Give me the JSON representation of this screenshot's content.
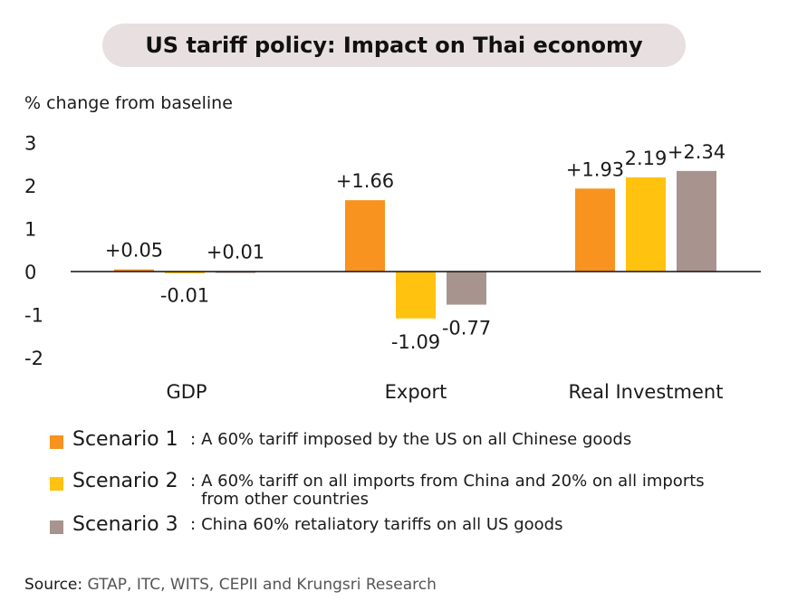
{
  "title": "US tariff policy: Impact on Thai economy",
  "unit_label": "% change from baseline",
  "chart_data": {
    "type": "bar",
    "categories": [
      "GDP",
      "Export",
      "Real Investment"
    ],
    "series": [
      {
        "name": "Scenario 1",
        "color": "#f7931e",
        "values": [
          0.05,
          1.66,
          1.93
        ],
        "labels": [
          "+0.05",
          "+1.66",
          "+1.93"
        ]
      },
      {
        "name": "Scenario 2",
        "color": "#ffc20e",
        "values": [
          -0.01,
          -1.09,
          2.19
        ],
        "labels": [
          "-0.01",
          "-1.09",
          "2.19"
        ]
      },
      {
        "name": "Scenario 3",
        "color": "#a8948f",
        "values": [
          0.01,
          -0.77,
          2.34
        ],
        "labels": [
          "+0.01",
          "-0.77",
          "+2.34"
        ]
      }
    ],
    "yticks": [
      "3",
      "2",
      "1",
      "0",
      "-1",
      "-2"
    ],
    "ylim": [
      -2,
      3
    ],
    "ylabel": "% change from baseline",
    "grid": false,
    "legend_position": "bottom"
  },
  "legend": [
    {
      "name": "Scenario 1",
      "desc_lines": [
        "A 60% tariff imposed by the US on all Chinese goods"
      ]
    },
    {
      "name": "Scenario 2",
      "desc_lines": [
        "A 60% tariff on all imports from China and 20% on all imports",
        "from other countries"
      ]
    },
    {
      "name": "Scenario 3",
      "desc_lines": [
        "China 60% retaliatory tariffs on all US goods"
      ]
    }
  ],
  "source": {
    "prefix": "Source:",
    "text": "GTAP, ITC, WITS, CEPII and Krungsri Research"
  }
}
